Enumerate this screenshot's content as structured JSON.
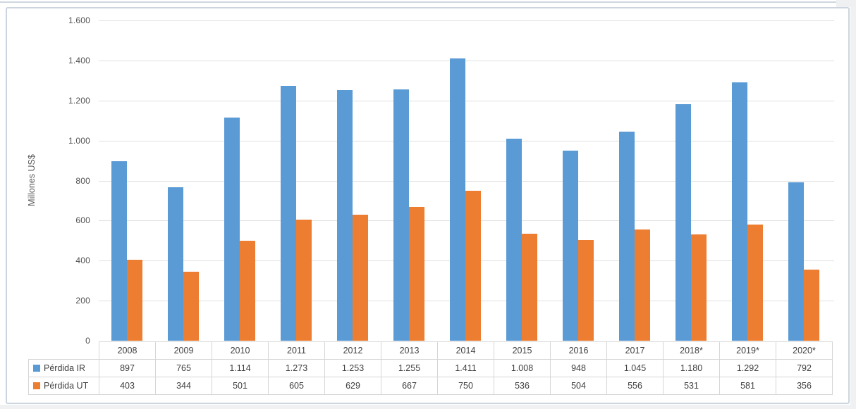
{
  "chart_data": {
    "type": "bar",
    "title": "",
    "xlabel": "",
    "ylabel": "Millones US$",
    "categories": [
      "2008",
      "2009",
      "2010",
      "2011",
      "2012",
      "2013",
      "2014",
      "2015",
      "2016",
      "2017",
      "2018*",
      "2019*",
      "2020*"
    ],
    "series": [
      {
        "name": "Pérdida IR",
        "color": "#5B9BD5",
        "values": [
          897,
          765,
          1114,
          1273,
          1253,
          1255,
          1411,
          1008,
          948,
          1045,
          1180,
          1292,
          792
        ],
        "labels": [
          "897",
          "765",
          "1.114",
          "1.273",
          "1.253",
          "1.255",
          "1.411",
          "1.008",
          "948",
          "1.045",
          "1.180",
          "1.292",
          "792"
        ]
      },
      {
        "name": "Pérdida UT",
        "color": "#ED7D31",
        "values": [
          403,
          344,
          501,
          605,
          629,
          667,
          750,
          536,
          504,
          556,
          531,
          581,
          356
        ],
        "labels": [
          "403",
          "344",
          "501",
          "605",
          "629",
          "667",
          "750",
          "536",
          "504",
          "556",
          "531",
          "581",
          "356"
        ]
      }
    ],
    "ylim": [
      0,
      1600
    ],
    "ytick_step": 200,
    "ytick_labels": [
      "0",
      "200",
      "400",
      "600",
      "800",
      "1.000",
      "1.200",
      "1.400",
      "1.600"
    ],
    "grid": true,
    "legend_position": "data-table-row-headers",
    "data_table_shown": true
  },
  "colors": {
    "bar_blue": "#5B9BD5",
    "bar_orange": "#ED7D31",
    "gridline": "#e0e0e0",
    "table_border": "#d6d6d6",
    "text": "#404040",
    "card_border": "#ccd5de",
    "outer_background": "#f0f1f2"
  }
}
